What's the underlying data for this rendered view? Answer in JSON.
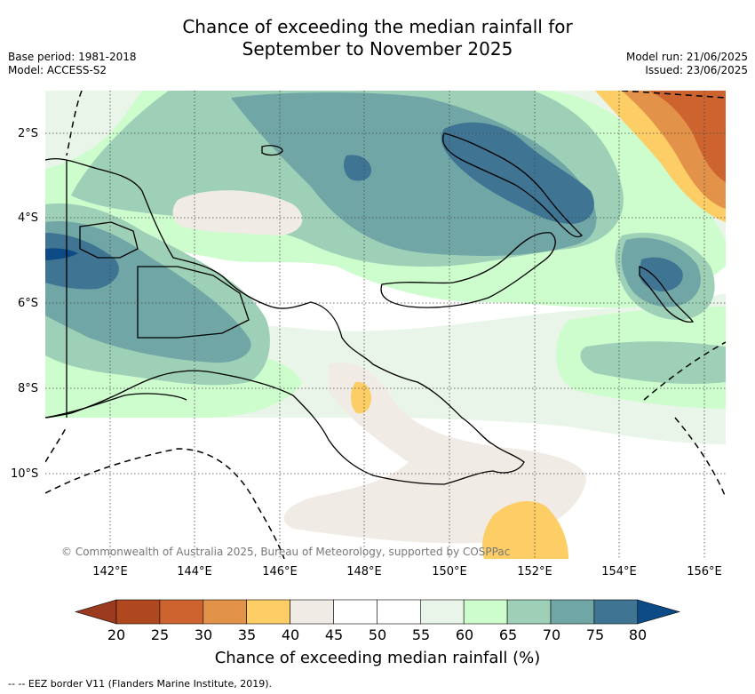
{
  "title_line1": "Chance of exceeding the median rainfall for",
  "title_line2": "September to November 2025",
  "meta_left": [
    "Base period: 1981-2018",
    "Model: ACCESS-S2"
  ],
  "meta_right": [
    "Model run: 21/06/2025",
    "Issued: 23/06/2025"
  ],
  "lat_labels": [
    "2°S",
    "4°S",
    "6°S",
    "8°S",
    "10°S"
  ],
  "lon_labels": [
    "142°E",
    "144°E",
    "146°E",
    "148°E",
    "150°E",
    "152°E",
    "154°E",
    "156°E"
  ],
  "copyright": "© Commonwealth of Australia 2025, Bureau of Meteorology, supported by COSPPac",
  "colorbar": {
    "ticks": [
      "20",
      "25",
      "30",
      "35",
      "40",
      "45",
      "50",
      "55",
      "60",
      "65",
      "70",
      "75",
      "80"
    ],
    "colors": [
      "#b0481f",
      "#cd6430",
      "#e3924a",
      "#fdcd66",
      "#f0ebe5",
      "#ffffff",
      "#ffffff",
      "#e9f5e8",
      "#cdfdcd",
      "#9dd0b6",
      "#70a7a6",
      "#3f7593"
    ],
    "under_color": "#9b3a1f",
    "over_color": "#0d4b86",
    "label": "Chance of exceeding median rainfall (%)"
  },
  "legend_eez": "-- -- EEZ border V11 (Flanders Marine Institute, 2019).",
  "palette": {
    "c25": "#cd6430",
    "c30": "#e3924a",
    "c35": "#fdcd66",
    "c40": "#f0ebe5",
    "c55": "#e9f5e8",
    "c60": "#cdfdcd",
    "c65": "#9dd0b6",
    "c70": "#70a7a6",
    "c75": "#3f7593"
  }
}
